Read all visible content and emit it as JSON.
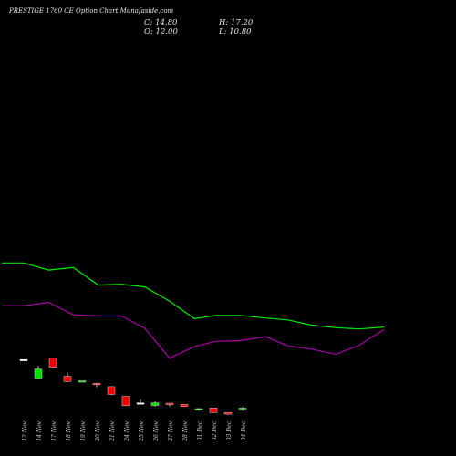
{
  "header": {
    "title": "PRESTIGE 1760  CE Option  Chart Munafaside.com",
    "close_text": "C: 14.80",
    "high_text": "H: 17.20",
    "open_text": "O: 12.00",
    "low_text": "L: 10.80"
  },
  "colors": {
    "background": "#000000",
    "up": "#00dd00",
    "down": "#ee0000",
    "upper_line": "#00ee00",
    "lower_line": "#aa00aa",
    "neutral": "#ffffff"
  },
  "chart_data": {
    "type": "candlestick",
    "title": "PRESTIGE 1760  CE Option  Chart Munafaside.com",
    "categories": [
      "12 Nov",
      "14 Nov",
      "17 Nov",
      "18 Nov",
      "19 Nov",
      "20 Nov",
      "21 Nov",
      "24 Nov",
      "25 Nov",
      "26 Nov",
      "27 Nov",
      "28 Nov",
      "01 Dec",
      "02 Dec",
      "03 Dec",
      "04 Dec"
    ],
    "ohlc": [
      {
        "o": 90.0,
        "h": 90.0,
        "l": 90.0,
        "c": 90.0
      },
      {
        "o": 60.0,
        "h": 80.0,
        "l": 59.0,
        "c": 75.0
      },
      {
        "o": 92.0,
        "h": 92.0,
        "l": 77.0,
        "c": 78.0
      },
      {
        "o": 64.0,
        "h": 70.0,
        "l": 55.0,
        "c": 56.0
      },
      {
        "o": 56.0,
        "h": 57.0,
        "l": 55.0,
        "c": 57.0
      },
      {
        "o": 53.0,
        "h": 54.0,
        "l": 47.0,
        "c": 51.5
      },
      {
        "o": 48.0,
        "h": 48.0,
        "l": 35.0,
        "c": 36.0
      },
      {
        "o": 33.0,
        "h": 33.0,
        "l": 18.0,
        "c": 18.5
      },
      {
        "o": 23.0,
        "h": 28.0,
        "l": 22.0,
        "c": 23.0
      },
      {
        "o": 19.0,
        "h": 25.0,
        "l": 17.0,
        "c": 23.0
      },
      {
        "o": 22.5,
        "h": 22.5,
        "l": 17.5,
        "c": 20.5
      },
      {
        "o": 20.5,
        "h": 20.5,
        "l": 17.0,
        "c": 17.5
      },
      {
        "o": 11.5,
        "h": 15.0,
        "l": 10.5,
        "c": 14.0
      },
      {
        "o": 15.0,
        "h": 15.0,
        "l": 7.5,
        "c": 8.0
      },
      {
        "o": 8.0,
        "h": 8.5,
        "l": 4.5,
        "c": 5.5
      },
      {
        "o": 12.0,
        "h": 17.2,
        "l": 10.8,
        "c": 14.8
      }
    ],
    "upper_band": [
      239,
      239,
      228,
      232,
      205,
      206,
      202,
      180,
      153,
      158,
      158,
      154,
      151,
      143,
      139,
      137,
      140
    ],
    "lower_band": [
      173,
      173,
      178,
      159,
      157,
      157,
      138,
      92,
      110,
      118,
      119,
      125,
      111,
      106,
      98,
      112,
      136
    ],
    "band_x": [
      0.0,
      1.5,
      3.2,
      4.9,
      6.6,
      8.2,
      9.8,
      11.5,
      13.2,
      14.7,
      16.3,
      18.1,
      19.6,
      21.2,
      22.9,
      24.5,
      26.2
    ],
    "ylim": [
      0,
      290
    ],
    "grid": false,
    "legend": "none"
  }
}
